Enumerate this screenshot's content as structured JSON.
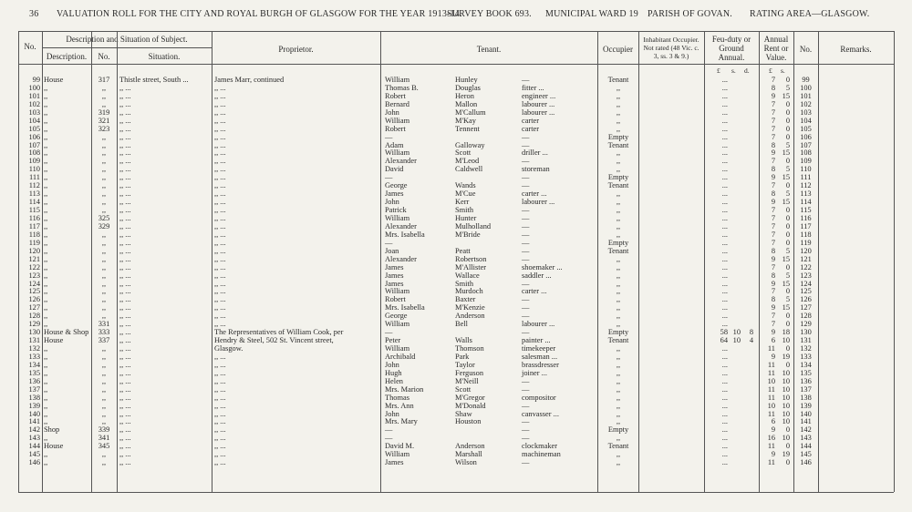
{
  "header": {
    "page": "36",
    "title": "VALUATION ROLL FOR THE CITY AND ROYAL BURGH OF GLASGOW FOR THE YEAR 1913-14.",
    "survey": "SURVEY BOOK 693.",
    "ward": "MUNICIPAL WARD 19",
    "parish": "PARISH OF GOVAN.",
    "area": "RATING AREA—GLASGOW."
  },
  "columns": {
    "no": "No.",
    "subject": "Description and Situation of Subject.",
    "description": "Description.",
    "number": "No.",
    "situation": "Situation.",
    "proprietor": "Proprietor.",
    "tenant": "Tenant.",
    "occupier": "Occupier",
    "inhabitant": "Inhabitant Occupier. Not rated (48 Vic. c. 3, ss. 3 & 9.)",
    "feu": "Feu-duty or Ground Annual.",
    "rent": "Annual Rent or Value.",
    "no2": "No.",
    "remarks": "Remarks.",
    "feu_units": [
      "£",
      "s.",
      "d."
    ],
    "rent_units": [
      "£",
      "s."
    ]
  },
  "rows": [
    [
      99,
      "House",
      317,
      "Thistle street, South ...",
      "James Marr, continued",
      "William",
      "Hunley",
      "—",
      "Tenant",
      "...",
      null,
      null,
      7,
      0,
      99
    ],
    [
      100,
      ",,",
      ",,",
      ",,  ...",
      ",,  ...",
      "Thomas B.",
      "Douglas",
      "fitter ...",
      ",,",
      "...",
      null,
      null,
      8,
      5,
      100
    ],
    [
      101,
      ",,",
      ",,",
      ",,  ...",
      ",,  ...",
      "Robert",
      "Heron",
      "engineer ...",
      ",,",
      "...",
      null,
      null,
      9,
      15,
      101
    ],
    [
      102,
      ",,",
      ",,",
      ",,  ...",
      ",,  ...",
      "Bernard",
      "Mallon",
      "labourer ...",
      ",,",
      "...",
      null,
      null,
      7,
      0,
      102
    ],
    [
      103,
      ",,",
      319,
      ",,  ...",
      ",,  ...",
      "John",
      "M'Callum",
      "labourer ...",
      ",,",
      "...",
      null,
      null,
      7,
      0,
      103
    ],
    [
      104,
      ",,",
      321,
      ",,  ...",
      ",,  ...",
      "William",
      "M'Kay",
      "carter",
      ",,",
      "...",
      null,
      null,
      7,
      0,
      104
    ],
    [
      105,
      ",,",
      323,
      ",,  ...",
      ",,  ...",
      "Robert",
      "Tennent",
      "carter",
      ",,",
      "...",
      null,
      null,
      7,
      0,
      105
    ],
    [
      106,
      ",,",
      ",,",
      ",,  ...",
      ",,  ...",
      "—",
      null,
      "—",
      "Empty",
      "...",
      null,
      null,
      7,
      0,
      106
    ],
    [
      107,
      ",,",
      ",,",
      ",,  ...",
      ",,  ...",
      "Adam",
      "Galloway",
      "—",
      "Tenant",
      "...",
      null,
      null,
      8,
      5,
      107
    ],
    [
      108,
      ",,",
      ",,",
      ",,  ...",
      ",,  ...",
      "William",
      "Scott",
      "driller ...",
      ",,",
      "...",
      null,
      null,
      9,
      15,
      108
    ],
    [
      109,
      ",,",
      ",,",
      ",,  ...",
      ",,  ...",
      "Alexander",
      "M'Leod",
      "—",
      ",,",
      "...",
      null,
      null,
      7,
      0,
      109
    ],
    [
      110,
      ",,",
      ",,",
      ",,  ...",
      ",,  ...",
      "David",
      "Caldwell",
      "storeman",
      ",,",
      "...",
      null,
      null,
      8,
      5,
      110
    ],
    [
      111,
      ",,",
      ",,",
      ",,  ...",
      ",,  ...",
      "—",
      null,
      "—",
      "Empty",
      "...",
      null,
      null,
      9,
      15,
      111
    ],
    [
      112,
      ",,",
      ",,",
      ",,  ...",
      ",,  ...",
      "George",
      "Wands",
      "—",
      "Tenant",
      "...",
      null,
      null,
      7,
      0,
      112
    ],
    [
      113,
      ",,",
      ",,",
      ",,  ...",
      ",,  ...",
      "James",
      "M'Cue",
      "carter ...",
      ",,",
      "...",
      null,
      null,
      8,
      5,
      113
    ],
    [
      114,
      ",,",
      ",,",
      ",,  ...",
      ",,  ...",
      "John",
      "Kerr",
      "labourer ...",
      ",,",
      "...",
      null,
      null,
      9,
      15,
      114
    ],
    [
      115,
      ",,",
      ",,",
      ",,  ...",
      ",,  ...",
      "Patrick",
      "Smith",
      "—",
      ",,",
      "...",
      null,
      null,
      7,
      0,
      115
    ],
    [
      116,
      ",,",
      325,
      ",,  ...",
      ",,  ...",
      "William",
      "Hunter",
      "—",
      ",,",
      "...",
      null,
      null,
      7,
      0,
      116
    ],
    [
      117,
      ",,",
      329,
      ",,  ...",
      ",,  ...",
      "Alexander",
      "Mulholland",
      "—",
      ",,",
      "...",
      null,
      null,
      7,
      0,
      117
    ],
    [
      118,
      ",,",
      ",,",
      ",,  ...",
      ",,  ...",
      "Mrs. Isabella",
      "M'Bride",
      "—",
      ",,",
      "...",
      null,
      null,
      7,
      0,
      118
    ],
    [
      119,
      ",,",
      ",,",
      ",,  ...",
      ",,  ...",
      "—",
      null,
      "—",
      "Empty",
      "...",
      null,
      null,
      7,
      0,
      119
    ],
    [
      120,
      ",,",
      ",,",
      ",,  ...",
      ",,  ...",
      "Joan",
      "Peatt",
      "—",
      "Tenant",
      "...",
      null,
      null,
      8,
      5,
      120
    ],
    [
      121,
      ",,",
      ",,",
      ",,  ...",
      ",,  ...",
      "Alexander",
      "Robertson",
      "—",
      ",,",
      "...",
      null,
      null,
      9,
      15,
      121
    ],
    [
      122,
      ",,",
      ",,",
      ",,  ...",
      ",,  ...",
      "James",
      "M'Allister",
      "shoemaker ...",
      ",,",
      "...",
      null,
      null,
      7,
      0,
      122
    ],
    [
      123,
      ",,",
      ",,",
      ",,  ...",
      ",,  ...",
      "James",
      "Wallace",
      "saddler ...",
      ",,",
      "...",
      null,
      null,
      8,
      5,
      123
    ],
    [
      124,
      ",,",
      ",,",
      ",,  ...",
      ",,  ...",
      "James",
      "Smith",
      "—",
      ",,",
      "...",
      null,
      null,
      9,
      15,
      124
    ],
    [
      125,
      ",,",
      ",,",
      ",,  ...",
      ",,  ...",
      "William",
      "Murdoch",
      "carter ...",
      ",,",
      "...",
      null,
      null,
      7,
      0,
      125
    ],
    [
      126,
      ",,",
      ",,",
      ",,  ...",
      ",,  ...",
      "Robert",
      "Baxter",
      "—",
      ",,",
      "...",
      null,
      null,
      8,
      5,
      126
    ],
    [
      127,
      ",,",
      ",,",
      ",,  ...",
      ",,  ...",
      "Mrs. Isabella",
      "M'Kenzie",
      "—",
      ",,",
      "...",
      null,
      null,
      9,
      15,
      127
    ],
    [
      128,
      ",,",
      ",,",
      ",,  ...",
      ",,  ...",
      "George",
      "Anderson",
      "—",
      ",,",
      "...",
      null,
      null,
      7,
      0,
      128
    ],
    [
      129,
      ",,",
      331,
      ",,  ...",
      ",,  ...",
      "William",
      "Bell",
      "labourer ...",
      ",,",
      "...",
      null,
      null,
      7,
      0,
      129
    ],
    [
      130,
      "House & Shop",
      333,
      ",,  ...",
      "The Representatives of William Cook, per",
      "—",
      null,
      "—",
      "Empty",
      58,
      10,
      8,
      9,
      18,
      130
    ],
    [
      131,
      "House",
      337,
      ",,  ...",
      "Hendry & Steel, 502 St. Vincent street,",
      "Peter",
      "Walls",
      "painter ...",
      "Tenant",
      64,
      10,
      4,
      6,
      10,
      131
    ],
    [
      132,
      ",,",
      ",,",
      ",,  ...",
      "Glasgow.",
      "William",
      "Thomson",
      "timekeeper",
      ",,",
      "...",
      null,
      null,
      11,
      0,
      132
    ],
    [
      133,
      ",,",
      ",,",
      ",,  ...",
      ",,  ...",
      "Archibald",
      "Park",
      "salesman ...",
      ",,",
      "...",
      null,
      null,
      9,
      19,
      133
    ],
    [
      134,
      ",,",
      ",,",
      ",,  ...",
      ",,  ...",
      "John",
      "Taylor",
      "brassdresser",
      ",,",
      "...",
      null,
      null,
      11,
      0,
      134
    ],
    [
      135,
      ",,",
      ",,",
      ",,  ...",
      ",,  ...",
      "Hugh",
      "Ferguson",
      "joiner ...",
      ",,",
      "...",
      null,
      null,
      11,
      10,
      135
    ],
    [
      136,
      ",,",
      ",,",
      ",,  ...",
      ",,  ...",
      "Helen",
      "M'Neill",
      "—",
      ",,",
      "...",
      null,
      null,
      10,
      10,
      136
    ],
    [
      137,
      ",,",
      ",,",
      ",,  ...",
      ",,  ...",
      "Mrs. Marion",
      "Scott",
      "—",
      ",,",
      "...",
      null,
      null,
      11,
      10,
      137
    ],
    [
      138,
      ",,",
      ",,",
      ",,  ...",
      ",,  ...",
      "Thomas",
      "M'Gregor",
      "compositor",
      ",,",
      "...",
      null,
      null,
      11,
      10,
      138
    ],
    [
      139,
      ",,",
      ",,",
      ",,  ...",
      ",,  ...",
      "Mrs. Ann",
      "M'Donald",
      "—",
      ",,",
      "...",
      null,
      null,
      10,
      10,
      139
    ],
    [
      140,
      ",,",
      ",,",
      ",,  ...",
      ",,  ...",
      "John",
      "Shaw",
      "canvasser ...",
      ",,",
      "...",
      null,
      null,
      11,
      10,
      140
    ],
    [
      141,
      ",,",
      ",,",
      ",,  ...",
      ",,  ...",
      "Mrs. Mary",
      "Houston",
      "—",
      ",,",
      "...",
      null,
      null,
      6,
      10,
      141
    ],
    [
      142,
      "Shop",
      339,
      ",,  ...",
      ",,  ...",
      "—",
      null,
      "—",
      "Empty",
      "...",
      null,
      null,
      9,
      0,
      142
    ],
    [
      143,
      ",,",
      341,
      ",,  ...",
      ",,  ...",
      "—",
      null,
      "—",
      ",,",
      "...",
      null,
      null,
      16,
      10,
      143
    ],
    [
      144,
      "House",
      345,
      ",,  ...",
      ",,  ...",
      "David M.",
      "Anderson",
      "clockmaker",
      "Tenant",
      "...",
      null,
      null,
      11,
      0,
      144
    ],
    [
      145,
      ",,",
      ",,",
      ",,  ...",
      ",,  ...",
      "William",
      "Marshall",
      "machineman",
      ",,",
      "...",
      null,
      null,
      9,
      19,
      145
    ],
    [
      146,
      ",,",
      ",,",
      ",,  ...",
      ",,  ...",
      "James",
      "Wilson",
      "—",
      ",,",
      "...",
      null,
      null,
      11,
      0,
      146
    ]
  ]
}
